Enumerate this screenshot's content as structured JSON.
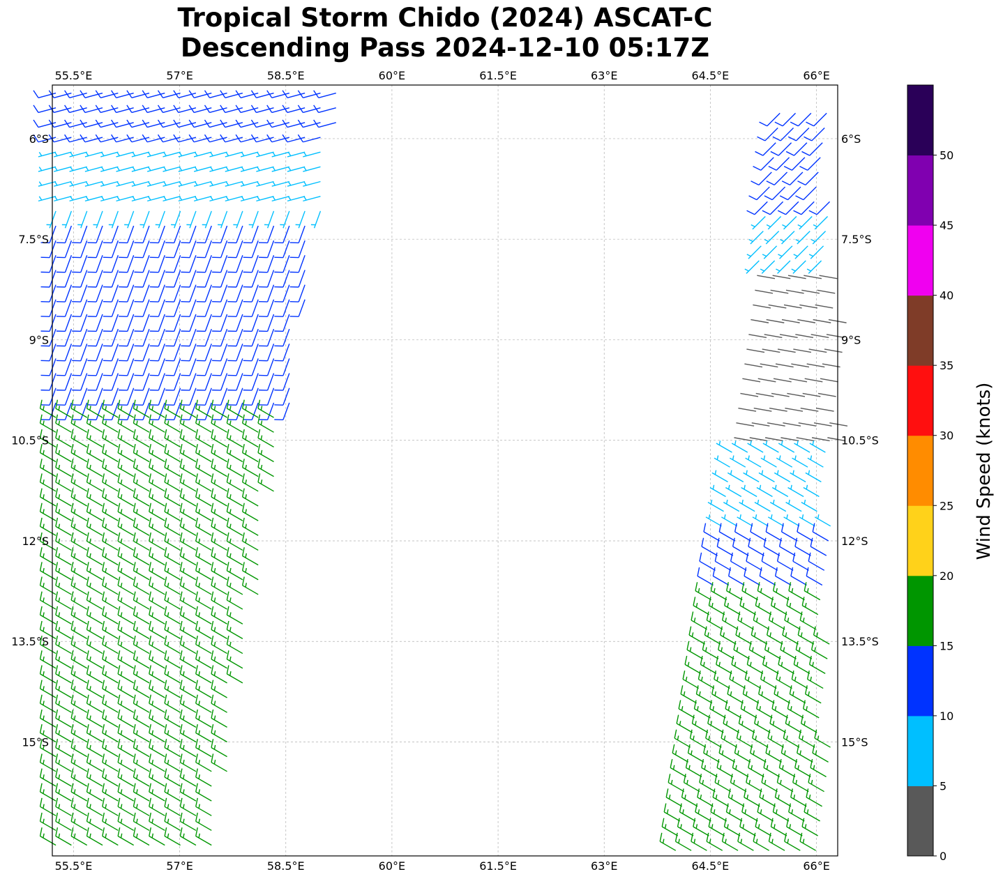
{
  "title": {
    "line1": "Tropical Storm Chido (2024) ASCAT-C",
    "line2": "Descending Pass 2024-12-10 05:17Z"
  },
  "map": {
    "lon_range": [
      55.2,
      66.3
    ],
    "lat_range": [
      -16.7,
      -5.2
    ],
    "lon_ticks": [
      "55.5°E",
      "57°E",
      "58.5°E",
      "60°E",
      "61.5°E",
      "63°E",
      "64.5°E",
      "66°E"
    ],
    "lat_ticks": [
      "6°S",
      "7.5°S",
      "9°S",
      "10.5°S",
      "12°S",
      "13.5°S",
      "15°S"
    ],
    "gridlines": true
  },
  "colorbar": {
    "label": "Wind Speed (knots)",
    "tick_labels": [
      "0",
      "5",
      "10",
      "15",
      "20",
      "25",
      "30",
      "35",
      "40",
      "45",
      "50"
    ],
    "bins": [
      {
        "range": [
          0,
          5
        ],
        "color": "#595959"
      },
      {
        "range": [
          5,
          10
        ],
        "color": "#00bfff"
      },
      {
        "range": [
          10,
          15
        ],
        "color": "#0033ff"
      },
      {
        "range": [
          15,
          20
        ],
        "color": "#009600"
      },
      {
        "range": [
          20,
          25
        ],
        "color": "#ffd21a"
      },
      {
        "range": [
          25,
          30
        ],
        "color": "#ff8c00"
      },
      {
        "range": [
          30,
          35
        ],
        "color": "#ff0f0f"
      },
      {
        "range": [
          35,
          40
        ],
        "color": "#7f3c28"
      },
      {
        "range": [
          40,
          45
        ],
        "color": "#f000f0"
      },
      {
        "range": [
          45,
          50
        ],
        "color": "#8000b0"
      },
      {
        "range": [
          50,
          55
        ],
        "color": "#2a0058"
      }
    ]
  },
  "wind_field": {
    "swath_west": {
      "lon_range_east_edge": [
        59.3,
        57.5
      ],
      "lat_range": [
        -5.2,
        -16.7
      ],
      "speed_regions": [
        {
          "lat_range": [
            -5.2,
            -6.0
          ],
          "speed_kt": 12
        },
        {
          "lat_range": [
            -6.0,
            -7.2
          ],
          "speed_kt": 8
        },
        {
          "lat_range": [
            -7.2,
            -10.0
          ],
          "speed_kt": 12
        },
        {
          "lat_range": [
            -10.0,
            -16.7
          ],
          "speed_kt": 17
        }
      ]
    },
    "swath_east": {
      "lon_range_west_edge": [
        65.5,
        64.0
      ],
      "lat_range": [
        -5.5,
        -16.7
      ],
      "speed_regions": [
        {
          "lat_range": [
            -5.5,
            -7.0
          ],
          "speed_kt": 12
        },
        {
          "lat_range": [
            -7.0,
            -8.0
          ],
          "speed_kt": 8
        },
        {
          "lat_range": [
            -8.0,
            -10.5
          ],
          "speed_kt": 3
        },
        {
          "lat_range": [
            -10.5,
            -12.0
          ],
          "speed_kt": 8
        },
        {
          "lat_range": [
            -12.0,
            -12.8
          ],
          "speed_kt": 12
        },
        {
          "lat_range": [
            -12.8,
            -16.7
          ],
          "speed_kt": 17
        }
      ]
    }
  }
}
